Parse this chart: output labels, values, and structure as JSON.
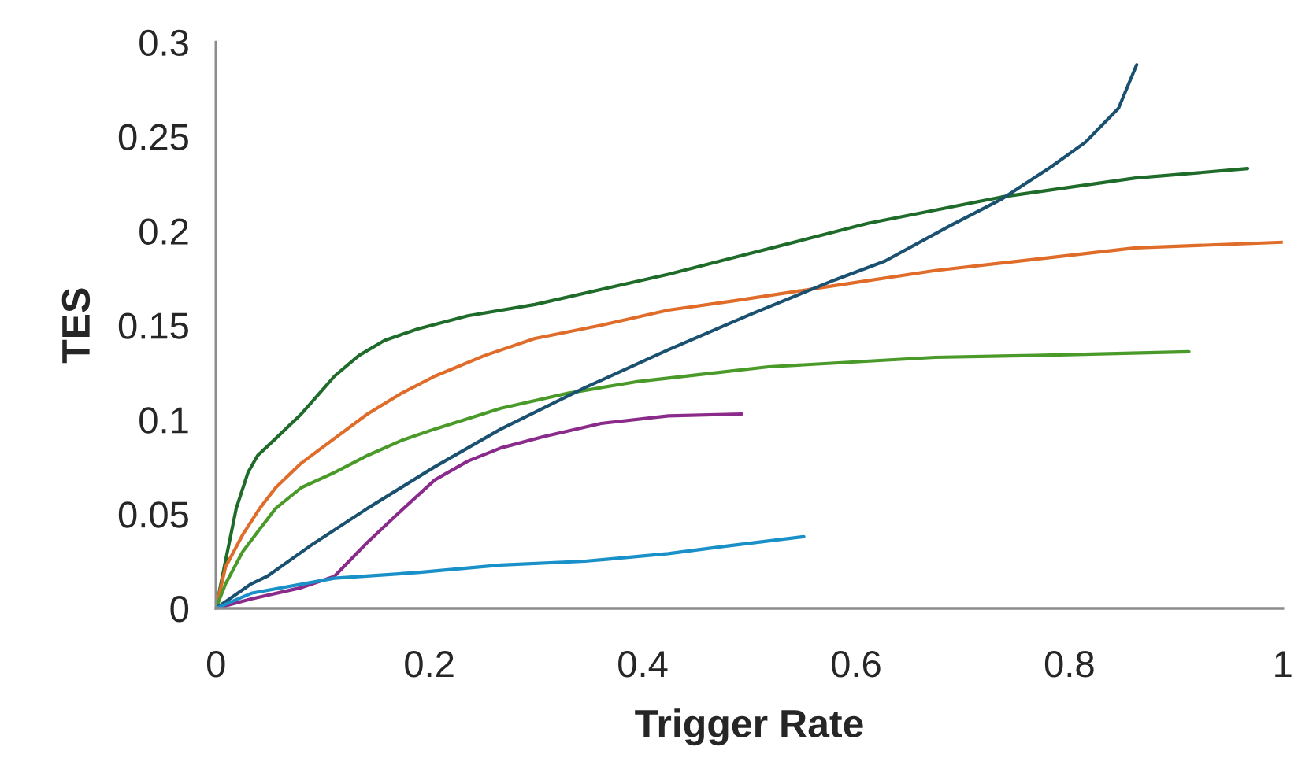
{
  "chart_data": {
    "type": "line",
    "xlabel": "Trigger Rate",
    "ylabel": "TES",
    "xlim": [
      0,
      1
    ],
    "ylim": [
      0,
      0.3
    ],
    "xticks": [
      0,
      0.2,
      0.4,
      0.6,
      0.8,
      1
    ],
    "yticks": [
      0,
      0.05,
      0.1,
      0.15,
      0.2,
      0.25,
      0.3
    ],
    "grid": false,
    "marker": "none",
    "line_style": "solid",
    "series": [
      {
        "color": "#1e6b2a",
        "x": [
          0,
          0.0078,
          0.019,
          0.03,
          0.039,
          0.056,
          0.08,
          0.111,
          0.134,
          0.158,
          0.189,
          0.236,
          0.299,
          0.361,
          0.424,
          0.486,
          0.549,
          0.611,
          0.674,
          0.737,
          0.799,
          0.862,
          0.967
        ],
        "values": [
          0,
          0.022,
          0.053,
          0.072,
          0.081,
          0.09,
          0.103,
          0.123,
          0.134,
          0.142,
          0.148,
          0.155,
          0.161,
          0.169,
          0.177,
          0.186,
          0.195,
          0.204,
          0.211,
          0.218,
          0.223,
          0.228,
          0.233
        ]
      },
      {
        "color": "#e06c2a",
        "x": [
          0,
          0.009,
          0.025,
          0.041,
          0.056,
          0.08,
          0.111,
          0.142,
          0.174,
          0.205,
          0.252,
          0.299,
          0.361,
          0.424,
          0.486,
          0.58,
          0.674,
          0.768,
          0.862,
          1.0
        ],
        "values": [
          0,
          0.022,
          0.039,
          0.053,
          0.064,
          0.077,
          0.09,
          0.103,
          0.114,
          0.123,
          0.134,
          0.143,
          0.15,
          0.158,
          0.163,
          0.171,
          0.179,
          0.185,
          0.191,
          0.194
        ]
      },
      {
        "color": "#4a9a2a",
        "x": [
          0,
          0.009,
          0.025,
          0.041,
          0.056,
          0.08,
          0.111,
          0.142,
          0.174,
          0.205,
          0.267,
          0.33,
          0.393,
          0.455,
          0.518,
          0.58,
          0.674,
          0.768,
          0.912
        ],
        "values": [
          0,
          0.013,
          0.03,
          0.042,
          0.053,
          0.064,
          0.072,
          0.081,
          0.089,
          0.095,
          0.106,
          0.114,
          0.12,
          0.124,
          0.128,
          0.13,
          0.133,
          0.134,
          0.136
        ]
      },
      {
        "color": "#1a5070",
        "x": [
          0,
          0.033,
          0.048,
          0.088,
          0.142,
          0.205,
          0.267,
          0.346,
          0.424,
          0.502,
          0.58,
          0.627,
          0.689,
          0.737,
          0.783,
          0.815,
          0.846,
          0.863
        ],
        "values": [
          0,
          0.013,
          0.017,
          0.033,
          0.053,
          0.075,
          0.095,
          0.117,
          0.137,
          0.156,
          0.174,
          0.184,
          0.203,
          0.217,
          0.234,
          0.247,
          0.265,
          0.288
        ]
      },
      {
        "color": "#8a2a8a",
        "x": [
          0,
          0.033,
          0.08,
          0.111,
          0.142,
          0.174,
          0.205,
          0.236,
          0.267,
          0.307,
          0.361,
          0.424,
          0.493
        ],
        "values": [
          0,
          0.005,
          0.011,
          0.017,
          0.035,
          0.052,
          0.068,
          0.078,
          0.085,
          0.091,
          0.098,
          0.102,
          0.103
        ]
      },
      {
        "color": "#1a90c8",
        "x": [
          0,
          0.033,
          0.111,
          0.189,
          0.267,
          0.346,
          0.424,
          0.478,
          0.551
        ],
        "values": [
          0,
          0.008,
          0.016,
          0.019,
          0.023,
          0.025,
          0.029,
          0.033,
          0.038
        ]
      }
    ]
  }
}
